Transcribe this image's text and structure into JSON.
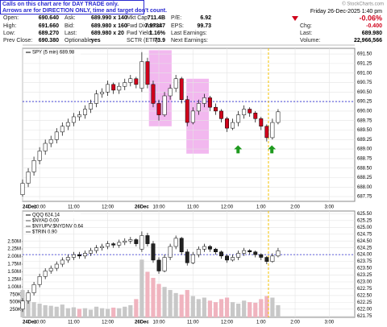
{
  "header": {
    "note": [
      "Calls on this chart are for DAY TRADE only.",
      "Arrows are for DIRECTION ONLY, time and target don't count."
    ],
    "copyright": "© StockCharts.com",
    "columns": [
      [
        [
          "Open:",
          "690.640"
        ],
        [
          "High:",
          "691.660"
        ],
        [
          "Low:",
          "689.270"
        ],
        [
          "Prev Close:",
          "690.380"
        ]
      ],
      [
        [
          "Ask:",
          "689.990 x 140"
        ],
        [
          "Bid:",
          "689.980 x 160"
        ],
        [
          "Last:",
          "689.980 x 20"
        ],
        [
          "Optionable:",
          "yes"
        ]
      ],
      [
        [
          "Mkt Cap:",
          "711.4B"
        ],
        [
          "Fwd Dividend:",
          "7.97347"
        ],
        [
          "Fwd Yield:",
          "1.16%"
        ],
        [
          "SCTR (ETF):",
          "73.9"
        ]
      ],
      [
        [
          "P/E:",
          "6.92"
        ],
        [
          "EPS:",
          "99.73"
        ],
        [
          "Last Earnings:",
          ""
        ],
        [
          "Next Earnings:",
          ""
        ]
      ]
    ],
    "datetime": "Friday 26-Dec-2025 1:40 pm",
    "pct_change": "-0.06%",
    "stats": [
      [
        "Chg:",
        "-0.400"
      ],
      [
        "Last:",
        "689.980"
      ],
      [
        "Volume:",
        "22,966,566"
      ]
    ]
  },
  "chart_data": [
    {
      "type": "candlestick",
      "title": "SPY (5 min) 689.98",
      "up_color": "#ffffff",
      "down_color": "#d0021b",
      "grid": true,
      "xlim": [
        0,
        117
      ],
      "ylim": [
        687.625,
        691.65
      ],
      "xticks": [
        {
          "value": 0,
          "label": "24Dec"
        },
        {
          "value": 6,
          "label": "10:00"
        },
        {
          "value": 18,
          "label": "11:00"
        },
        {
          "value": 30,
          "label": "12:00"
        },
        {
          "value": 42,
          "label": "26Dec"
        },
        {
          "value": 48,
          "label": "10:00"
        },
        {
          "value": 60,
          "label": "11:00"
        },
        {
          "value": 72,
          "label": "12:00"
        },
        {
          "value": 84,
          "label": "1:00"
        },
        {
          "value": 96,
          "label": "2:00"
        },
        {
          "value": 108,
          "label": "3:00"
        }
      ],
      "yticks": [
        {
          "value": 687.75,
          "label": "687.75"
        },
        {
          "value": 688,
          "label": "688.00"
        },
        {
          "value": 688.25,
          "label": "688.25"
        },
        {
          "value": 688.5,
          "label": "688.50"
        },
        {
          "value": 688.75,
          "label": "688.75"
        },
        {
          "value": 689,
          "label": "689.00"
        },
        {
          "value": 689.25,
          "label": "689.25"
        },
        {
          "value": 689.5,
          "label": "689.50"
        },
        {
          "value": 689.75,
          "label": "689.75"
        },
        {
          "value": 690,
          "label": "690.00"
        },
        {
          "value": 690.25,
          "label": "690.25"
        },
        {
          "value": 690.5,
          "label": "690.50"
        },
        {
          "value": 690.75,
          "label": "690.75"
        },
        {
          "value": 691,
          "label": "691.00"
        },
        {
          "value": 691.25,
          "label": "691.25"
        },
        {
          "value": 691.5,
          "label": "691.50"
        }
      ],
      "x": [
        0,
        2,
        4,
        6,
        8,
        10,
        12,
        14,
        16,
        18,
        20,
        22,
        24,
        26,
        28,
        30,
        32,
        34,
        36,
        38,
        40,
        42,
        44,
        46,
        48,
        50,
        52,
        54,
        56,
        58,
        60,
        62,
        64,
        66,
        68,
        70,
        72,
        74,
        76,
        78,
        80,
        82,
        84,
        86,
        88,
        90
      ],
      "ohlc": [
        [
          687.8,
          688.2,
          687.75,
          688.1
        ],
        [
          688.1,
          688.5,
          688.0,
          688.4
        ],
        [
          688.4,
          688.8,
          688.3,
          688.7
        ],
        [
          688.7,
          689.05,
          688.6,
          688.95
        ],
        [
          688.95,
          689.25,
          688.85,
          689.15
        ],
        [
          689.15,
          689.35,
          689.05,
          689.25
        ],
        [
          689.25,
          689.55,
          689.15,
          689.45
        ],
        [
          689.45,
          689.7,
          689.35,
          689.6
        ],
        [
          689.6,
          689.8,
          689.5,
          689.7
        ],
        [
          689.7,
          689.95,
          689.6,
          689.85
        ],
        [
          689.85,
          690.0,
          689.75,
          689.9
        ],
        [
          689.9,
          690.15,
          689.8,
          690.05
        ],
        [
          690.05,
          690.3,
          689.95,
          690.2
        ],
        [
          690.2,
          690.55,
          690.1,
          690.45
        ],
        [
          690.45,
          690.6,
          690.35,
          690.5
        ],
        [
          690.5,
          690.8,
          690.4,
          690.7
        ],
        [
          690.7,
          690.75,
          690.45,
          690.55
        ],
        [
          690.55,
          690.75,
          690.45,
          690.65
        ],
        [
          690.65,
          690.85,
          690.55,
          690.75
        ],
        [
          690.75,
          690.95,
          690.65,
          690.85
        ],
        [
          690.85,
          690.9,
          690.6,
          690.7
        ],
        [
          690.6,
          691.55,
          690.5,
          691.3
        ],
        [
          691.3,
          691.4,
          690.6,
          690.7
        ],
        [
          690.7,
          690.8,
          690.1,
          690.2
        ],
        [
          690.2,
          690.3,
          689.75,
          689.9
        ],
        [
          689.9,
          690.5,
          689.85,
          690.4
        ],
        [
          690.4,
          690.7,
          690.3,
          690.6
        ],
        [
          690.6,
          690.95,
          690.5,
          690.85
        ],
        [
          690.85,
          690.9,
          690.2,
          690.3
        ],
        [
          690.3,
          690.4,
          689.6,
          689.7
        ],
        [
          689.7,
          690.1,
          689.65,
          690.0
        ],
        [
          690.0,
          690.3,
          689.9,
          690.2
        ],
        [
          690.2,
          690.45,
          690.1,
          690.35
        ],
        [
          690.35,
          690.4,
          690.0,
          690.1
        ],
        [
          690.1,
          690.2,
          689.9,
          690.0
        ],
        [
          690.0,
          690.05,
          689.7,
          689.8
        ],
        [
          689.8,
          689.85,
          689.45,
          689.55
        ],
        [
          689.55,
          689.8,
          689.5,
          689.7
        ],
        [
          689.7,
          690.0,
          689.6,
          689.9
        ],
        [
          689.9,
          690.15,
          689.8,
          690.05
        ],
        [
          690.05,
          690.1,
          689.85,
          689.95
        ],
        [
          689.95,
          690.0,
          689.7,
          689.8
        ],
        [
          689.8,
          689.85,
          689.5,
          689.6
        ],
        [
          689.6,
          689.65,
          689.2,
          689.3
        ],
        [
          689.3,
          689.8,
          689.25,
          689.7
        ],
        [
          689.7,
          690.05,
          689.65,
          689.98
        ]
      ],
      "reference_line": 690.25,
      "reference_color": "#2a2ad0",
      "marker_x": 86.6,
      "marker_color": "#f5c400",
      "highlights": [
        {
          "x": [
            44.5,
            52.5
          ],
          "y": [
            689.6,
            691.6
          ]
        },
        {
          "x": [
            57.7,
            65.6
          ],
          "y": [
            688.88,
            690.85
          ]
        }
      ],
      "highlight_color": "#f2b8ef",
      "arrows": [
        {
          "x": 75.9,
          "y": 689.1
        },
        {
          "x": 87.8,
          "y": 689.1
        }
      ],
      "arrow_color": "#1f9a1f"
    },
    {
      "type": "candlestick",
      "title": "QQQ 624.14",
      "overlays": [
        "$NYAD 0.00",
        "$NYUPV:$NYDNV 0.64",
        "$TRIN 0.90"
      ],
      "up_color": "#ffffff",
      "down_color": "#222222",
      "grid": true,
      "xlim": [
        0,
        117
      ],
      "ylim": [
        621.7,
        625.6
      ],
      "vlim": [
        0,
        3500000
      ],
      "xticks": [
        {
          "value": 0,
          "label": "24Dec"
        },
        {
          "value": 6,
          "label": "10:00"
        },
        {
          "value": 18,
          "label": "11:00"
        },
        {
          "value": 30,
          "label": "12:00"
        },
        {
          "value": 42,
          "label": "26Dec"
        },
        {
          "value": 48,
          "label": "10:00"
        },
        {
          "value": 60,
          "label": "11:00"
        },
        {
          "value": 72,
          "label": "12:00"
        },
        {
          "value": 84,
          "label": "1:00"
        },
        {
          "value": 96,
          "label": "2:00"
        },
        {
          "value": 108,
          "label": "3:00"
        }
      ],
      "yticks": [
        {
          "value": 621.75,
          "label": "621.75"
        },
        {
          "value": 622,
          "label": "622.00"
        },
        {
          "value": 622.25,
          "label": "622.25"
        },
        {
          "value": 622.5,
          "label": "622.50"
        },
        {
          "value": 622.75,
          "label": "622.75"
        },
        {
          "value": 623,
          "label": "623.00"
        },
        {
          "value": 623.25,
          "label": "623.25"
        },
        {
          "value": 623.5,
          "label": "623.50"
        },
        {
          "value": 623.75,
          "label": "623.75"
        },
        {
          "value": 624,
          "label": "624.00"
        },
        {
          "value": 624.25,
          "label": "624.25"
        },
        {
          "value": 624.5,
          "label": "624.50"
        },
        {
          "value": 624.75,
          "label": "624.75"
        },
        {
          "value": 625,
          "label": "625.00"
        },
        {
          "value": 625.25,
          "label": "625.25"
        },
        {
          "value": 625.5,
          "label": "625.50"
        }
      ],
      "vticks": [
        {
          "value": 250000,
          "label": "250K"
        },
        {
          "value": 500000,
          "label": "500K"
        },
        {
          "value": 750000,
          "label": "750K"
        },
        {
          "value": 1000000,
          "label": "1.00M"
        },
        {
          "value": 1250000,
          "label": "1.25M"
        },
        {
          "value": 1500000,
          "label": "1.50M"
        },
        {
          "value": 1750000,
          "label": "1.75M"
        },
        {
          "value": 2000000,
          "label": "2.00M"
        },
        {
          "value": 2250000,
          "label": "2.25M"
        },
        {
          "value": 2500000,
          "label": "2.50M"
        }
      ],
      "x": [
        0,
        2,
        4,
        6,
        8,
        10,
        12,
        14,
        16,
        18,
        20,
        22,
        24,
        26,
        28,
        30,
        32,
        34,
        36,
        38,
        40,
        42,
        44,
        46,
        48,
        50,
        52,
        54,
        56,
        58,
        60,
        62,
        64,
        66,
        68,
        70,
        72,
        74,
        76,
        78,
        80,
        82,
        84,
        86,
        88,
        90
      ],
      "ohlc": [
        [
          622.0,
          622.4,
          621.9,
          622.3
        ],
        [
          622.3,
          622.7,
          622.2,
          622.6
        ],
        [
          622.6,
          623.0,
          622.5,
          622.9
        ],
        [
          622.9,
          623.3,
          622.8,
          623.2
        ],
        [
          623.2,
          623.5,
          623.1,
          623.4
        ],
        [
          623.4,
          623.6,
          623.3,
          623.5
        ],
        [
          623.5,
          623.75,
          623.4,
          623.65
        ],
        [
          623.65,
          623.9,
          623.55,
          623.8
        ],
        [
          623.8,
          624.0,
          623.7,
          623.9
        ],
        [
          623.9,
          624.1,
          623.8,
          624.0
        ],
        [
          624.0,
          624.1,
          623.85,
          623.95
        ],
        [
          623.95,
          624.15,
          623.85,
          624.05
        ],
        [
          624.05,
          624.25,
          623.95,
          624.15
        ],
        [
          624.15,
          624.35,
          624.05,
          624.25
        ],
        [
          624.25,
          624.4,
          624.15,
          624.3
        ],
        [
          624.3,
          624.5,
          624.2,
          624.4
        ],
        [
          624.4,
          624.45,
          624.25,
          624.35
        ],
        [
          624.35,
          624.55,
          624.25,
          624.45
        ],
        [
          624.45,
          624.6,
          624.35,
          624.5
        ],
        [
          624.5,
          624.65,
          624.4,
          624.55
        ],
        [
          624.55,
          624.6,
          624.3,
          624.4
        ],
        [
          624.2,
          624.85,
          624.1,
          624.7
        ],
        [
          624.7,
          624.8,
          624.3,
          624.4
        ],
        [
          624.4,
          624.5,
          623.7,
          623.8
        ],
        [
          623.8,
          623.9,
          623.3,
          623.4
        ],
        [
          623.4,
          624.0,
          623.35,
          623.9
        ],
        [
          623.9,
          624.4,
          623.8,
          624.3
        ],
        [
          624.3,
          624.7,
          624.2,
          624.6
        ],
        [
          624.6,
          624.65,
          624.0,
          624.1
        ],
        [
          624.1,
          624.2,
          623.6,
          623.7
        ],
        [
          623.7,
          624.1,
          623.65,
          624.0
        ],
        [
          624.0,
          624.3,
          623.9,
          624.2
        ],
        [
          624.2,
          624.4,
          624.1,
          624.3
        ],
        [
          624.3,
          624.35,
          624.1,
          624.2
        ],
        [
          624.2,
          624.25,
          624.0,
          624.1
        ],
        [
          624.1,
          624.15,
          623.85,
          623.95
        ],
        [
          623.95,
          624.0,
          623.7,
          623.8
        ],
        [
          623.8,
          624.0,
          623.75,
          623.9
        ],
        [
          623.9,
          624.15,
          623.8,
          624.05
        ],
        [
          624.05,
          624.25,
          623.95,
          624.15
        ],
        [
          624.15,
          624.2,
          624.0,
          624.1
        ],
        [
          624.1,
          624.15,
          623.9,
          624.0
        ],
        [
          624.0,
          624.05,
          623.8,
          623.9
        ],
        [
          623.9,
          623.95,
          623.65,
          623.75
        ],
        [
          623.75,
          624.05,
          623.7,
          623.95
        ],
        [
          623.95,
          624.25,
          623.9,
          624.14
        ]
      ],
      "volume": [
        900000,
        600000,
        500000,
        450000,
        400000,
        380000,
        350000,
        420000,
        300000,
        330000,
        280000,
        300000,
        250000,
        350000,
        300000,
        280000,
        320000,
        300000,
        350000,
        400000,
        600000,
        1900000,
        1500000,
        1300000,
        1100000,
        1000000,
        900000,
        800000,
        750000,
        900000,
        700000,
        600000,
        650000,
        550000,
        500000,
        600000,
        650000,
        500000,
        450000,
        550000,
        500000,
        480000,
        600000,
        700000,
        650000,
        400000
      ],
      "volume_up_color": "#c8c8c8",
      "volume_down_color": "#f0b4bf",
      "reference_line": 624.0,
      "reference_color": "#2a2ad0",
      "marker_x": 86.6,
      "marker_color": "#f5c400"
    }
  ]
}
